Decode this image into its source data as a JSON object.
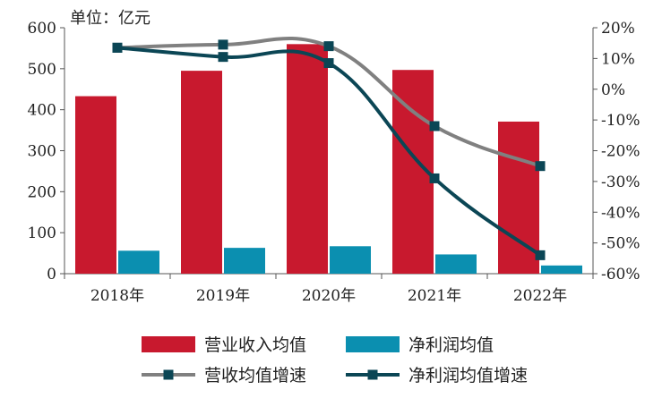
{
  "chart_data": {
    "type": "bar+line",
    "unit_label": "单位：亿元",
    "categories": [
      "2018年",
      "2019年",
      "2020年",
      "2021年",
      "2022年"
    ],
    "left_axis": {
      "min": 0,
      "max": 600,
      "ticks": [
        "0",
        "100",
        "200",
        "300",
        "400",
        "500",
        "600"
      ]
    },
    "right_axis": {
      "min": -60,
      "max": 20,
      "ticks": [
        "-60%",
        "-50%",
        "-40%",
        "-30%",
        "-20%",
        "-10%",
        "0%",
        "10%",
        "20%"
      ]
    },
    "bar_series": [
      {
        "name": "营业收入均值",
        "color": "#c8192e",
        "values": [
          433,
          495,
          560,
          497,
          371
        ]
      },
      {
        "name": "净利润均值",
        "color": "#0b8fb0",
        "values": [
          56,
          63,
          67,
          47,
          20
        ]
      }
    ],
    "line_series": [
      {
        "name": "营收均值增速",
        "color": "#808080",
        "values": [
          13.5,
          14.5,
          14.0,
          -12.0,
          -25.0
        ]
      },
      {
        "name": "净利润均值增速",
        "color": "#0b4655",
        "values": [
          13.5,
          10.5,
          8.5,
          -29.0,
          -54.0
        ]
      }
    ]
  }
}
